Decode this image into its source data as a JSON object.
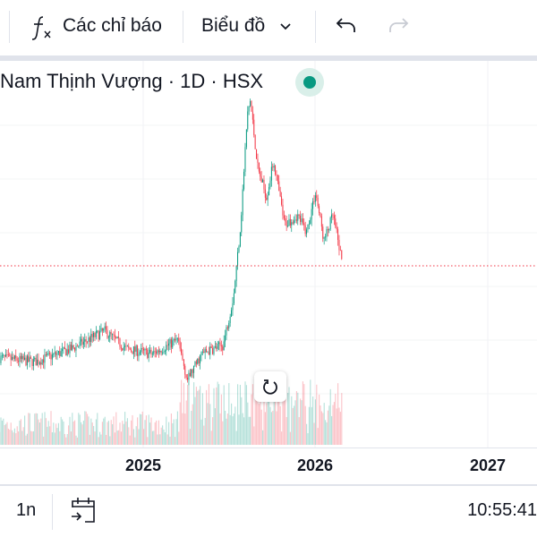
{
  "toolbar": {
    "indicators_label": "Các chỉ báo",
    "indicators_icon": "fx-icon",
    "chart_type_label": "Biểu đồ",
    "undo_icon": "undo-icon",
    "redo_icon": "redo-icon"
  },
  "legend": {
    "title": "Nam Thịnh Vượng · 1D · HSX",
    "status_color": "#089981"
  },
  "bottom_bar": {
    "range_label": "1n",
    "goto_date_icon": "calendar-arrow-icon",
    "time": "10:55:41"
  },
  "colors": {
    "up": "#089981",
    "down": "#f23645",
    "last_price_line": "#f23645"
  },
  "chart_data": {
    "type": "candlestick",
    "x_tick_labels": [
      "2025",
      "2026",
      "2027"
    ],
    "close_path": [
      [
        "2024-03-01",
        20.0
      ],
      [
        "2024-05-15",
        19.7
      ],
      [
        "2024-08-01",
        20.7
      ],
      [
        "2024-10-10",
        22.1
      ],
      [
        "2024-11-25",
        20.7
      ],
      [
        "2025-01-20",
        20.3
      ],
      [
        "2025-03-15",
        21.4
      ],
      [
        "2025-04-05",
        18.3
      ],
      [
        "2025-05-05",
        20.3
      ],
      [
        "2025-06-20",
        21.0
      ],
      [
        "2025-07-12",
        24.8
      ],
      [
        "2025-07-27",
        30.3
      ],
      [
        "2025-08-10",
        38.6
      ],
      [
        "2025-08-16",
        39.9
      ],
      [
        "2025-09-02",
        34.5
      ],
      [
        "2025-09-20",
        32.4
      ],
      [
        "2025-10-05",
        35.2
      ],
      [
        "2025-10-28",
        30.3
      ],
      [
        "2025-11-25",
        31.0
      ],
      [
        "2025-12-14",
        29.7
      ],
      [
        "2026-01-02",
        32.8
      ],
      [
        "2026-01-20",
        29.0
      ],
      [
        "2026-02-08",
        31.0
      ],
      [
        "2026-03-01",
        27.1
      ]
    ],
    "last_price_line": true,
    "volume_pane": true,
    "grid": true
  }
}
